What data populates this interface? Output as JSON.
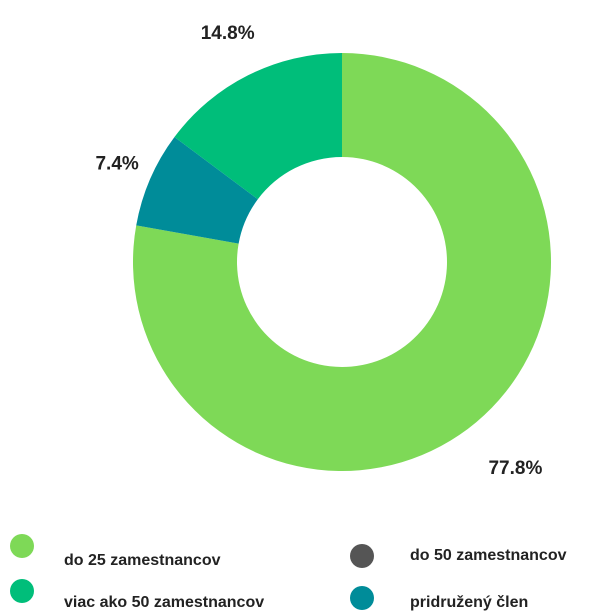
{
  "chart_data": {
    "type": "donut",
    "categories": [
      "do 25 zamestnancov",
      "do 50 zamestnancov",
      "viac ako 50 zamestnancov",
      "pridružený  člen"
    ],
    "values": [
      77.8,
      0,
      14.8,
      7.4
    ],
    "value_labels": [
      "77.8%",
      null,
      "14.8%",
      "7.4%"
    ],
    "colors": [
      "#7ed957",
      "#555555",
      "#00be7a",
      "#008c99"
    ]
  }
}
